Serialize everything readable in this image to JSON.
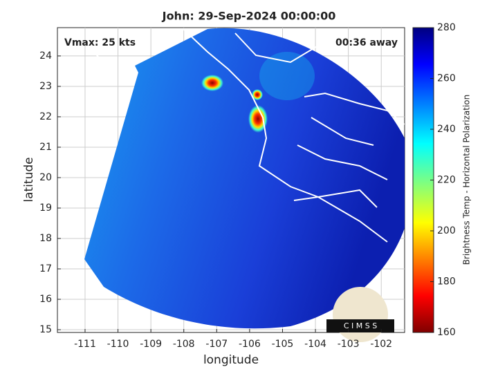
{
  "chart_data": {
    "type": "image",
    "title": "John: 29-Sep-2024 00:00:00",
    "xlabel": "longitude",
    "ylabel": "latitude",
    "xlim": [
      -111.84,
      -101.29
    ],
    "xticks": [
      -111,
      -110,
      -109,
      -108,
      -107,
      -106,
      -105,
      -104,
      -103,
      -102
    ],
    "ylim": [
      14.91,
      24.93
    ],
    "yticks": [
      15,
      16,
      17,
      18,
      19,
      20,
      21,
      22,
      23,
      24
    ],
    "grid": true,
    "annotations": [
      "Vmax: 25 kts",
      "00:36 away"
    ],
    "colorbar": {
      "label": "Brightness Temp - Horizontal Polarization",
      "clim": [
        160,
        280
      ],
      "ticks": [
        160,
        180,
        200,
        220,
        240,
        260,
        280
      ],
      "colormap": "jet"
    },
    "logo": "C I M S S"
  }
}
